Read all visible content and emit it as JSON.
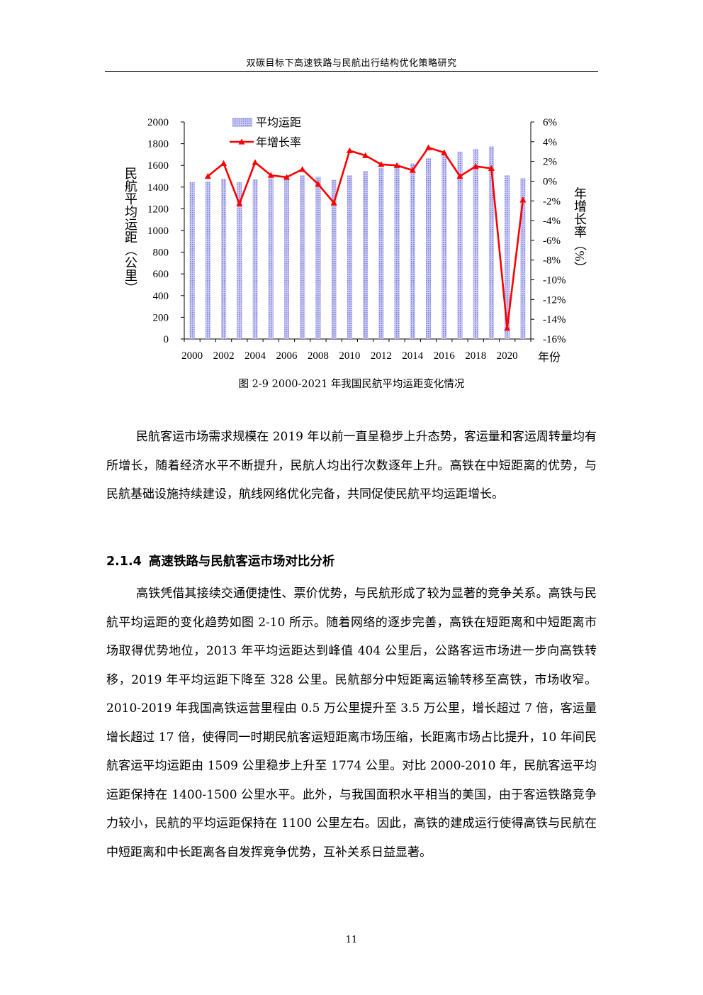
{
  "header": {
    "title": "双碳目标下高速铁路与民航出行结构优化策略研究"
  },
  "figure": {
    "caption": "图 2-9 2000-2021 年我国民航平均运距变化情况"
  },
  "chart_data": {
    "type": "bar+line",
    "categories": [
      "2000",
      "2001",
      "2002",
      "2003",
      "2004",
      "2005",
      "2006",
      "2007",
      "2008",
      "2009",
      "2010",
      "2011",
      "2012",
      "2013",
      "2014",
      "2015",
      "2016",
      "2017",
      "2018",
      "2019",
      "2020",
      "2021"
    ],
    "x_tick_labels": [
      "2000",
      "2002",
      "2004",
      "2006",
      "2008",
      "2010",
      "2012",
      "2014",
      "2016",
      "2018",
      "2020"
    ],
    "xlabel": "年份",
    "ylabel": "民航平均运距（公里）",
    "y2label": "年增长率（%）",
    "ylim": [
      0,
      2000
    ],
    "y_ticks": [
      "0",
      "200",
      "400",
      "600",
      "800",
      "1000",
      "1200",
      "1400",
      "1600",
      "1800",
      "2000"
    ],
    "y2lim": [
      -16,
      6
    ],
    "y2_ticks": [
      "-16%",
      "-14%",
      "-12%",
      "-10%",
      "-8%",
      "-6%",
      "-4%",
      "-2%",
      "0%",
      "2%",
      "4%",
      "6%"
    ],
    "legend_position": "top-left",
    "series": [
      {
        "name": "平均运距",
        "type": "bar",
        "axis": "left",
        "color": "#9e9ee6",
        "values": [
          1445,
          1452,
          1478,
          1444,
          1472,
          1481,
          1493,
          1509,
          1496,
          1468,
          1509,
          1548,
          1575,
          1596,
          1617,
          1668,
          1709,
          1727,
          1752,
          1774,
          1510,
          1481
        ]
      },
      {
        "name": "年增长率",
        "type": "line",
        "axis": "right",
        "color": "#ff0000",
        "values": [
          null,
          0.5,
          1.8,
          -2.3,
          1.9,
          0.6,
          0.4,
          1.2,
          -0.3,
          -2.2,
          3.1,
          2.6,
          1.7,
          1.6,
          1.1,
          3.4,
          2.9,
          0.5,
          1.5,
          1.3,
          -14.9,
          -1.9
        ]
      }
    ]
  },
  "body": {
    "p1": "民航客运市场需求规模在 2019 年以前一直呈稳步上升态势，客运量和客运周转量均有所增长，随着经济水平不断提升，民航人均出行次数逐年上升。高铁在中短距离的优势，与民航基础设施持续建设，航线网络优化完备，共同促使民航平均运距增长。",
    "section_number": "2.1.4",
    "section_title": "高速铁路与民航客运市场对比分析",
    "p2": "高铁凭借其接续交通便捷性、票价优势，与民航形成了较为显著的竞争关系。高铁与民航平均运距的变化趋势如图 2-10 所示。随着网络的逐步完善，高铁在短距离和中短距离市场取得优势地位，2013 年平均运距达到峰值 404 公里后，公路客运市场进一步向高铁转移，2019 年平均运距下降至 328 公里。民航部分中短距离运输转移至高铁，市场收窄。2010-2019 年我国高铁运营里程由 0.5 万公里提升至 3.5 万公里，增长超过 7 倍，客运量增长超过 17 倍，使得同一时期民航客运短距离市场压缩，长距离市场占比提升，10 年间民航客运平均运距由 1509 公里稳步上升至 1774 公里。对比 2000-2010 年，民航客运平均运距保持在 1400-1500 公里水平。此外，与我国面积水平相当的美国，由于客运铁路竞争力较小，民航的平均运距保持在 1100 公里左右。因此，高铁的建成运行使得高铁与民航在中短距离和中长距离各自发挥竞争优势，互补关系日益显著。"
  },
  "page_number": "11"
}
